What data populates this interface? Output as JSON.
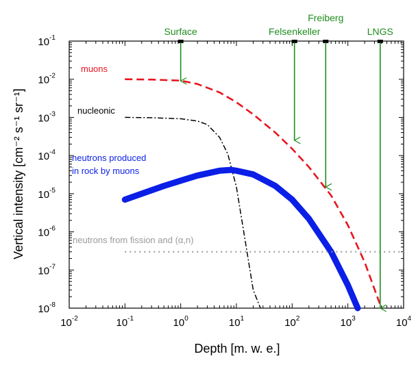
{
  "chart_data": {
    "type": "line",
    "title": "",
    "xlabel": "Depth [m. w. e.]",
    "ylabel": "Vertical intensity [cm⁻² s⁻¹ sr⁻¹]",
    "x_scale": "log",
    "y_scale": "log",
    "xlim": [
      0.01,
      10000
    ],
    "ylim": [
      1e-08,
      0.1
    ],
    "x_ticks": [
      {
        "base": "10",
        "exp": "-2"
      },
      {
        "base": "10",
        "exp": "-1"
      },
      {
        "base": "10",
        "exp": "0"
      },
      {
        "base": "10",
        "exp": "1"
      },
      {
        "base": "10",
        "exp": "2"
      },
      {
        "base": "10",
        "exp": "3"
      },
      {
        "base": "10",
        "exp": "4"
      }
    ],
    "y_ticks": [
      {
        "base": "10",
        "exp": "-8"
      },
      {
        "base": "10",
        "exp": "-7"
      },
      {
        "base": "10",
        "exp": "-6"
      },
      {
        "base": "10",
        "exp": "-5"
      },
      {
        "base": "10",
        "exp": "-4"
      },
      {
        "base": "10",
        "exp": "-3"
      },
      {
        "base": "10",
        "exp": "-2"
      },
      {
        "base": "10",
        "exp": "-1"
      }
    ],
    "grid": false,
    "legend": "none",
    "series": [
      {
        "name": "muons",
        "color": "#e8141e",
        "style": "dashed",
        "x": [
          0.1,
          0.3,
          1,
          2,
          5,
          10,
          20,
          50,
          100,
          200,
          500,
          1000,
          2000,
          4000
        ],
        "y": [
          0.01,
          0.0098,
          0.0092,
          0.0075,
          0.0045,
          0.0025,
          0.0012,
          0.0004,
          0.00015,
          5e-05,
          9e-06,
          1.5e-06,
          1.6e-07,
          1e-08
        ]
      },
      {
        "name": "nucleonic",
        "color": "#000000",
        "style": "dashdot",
        "x": [
          0.1,
          0.3,
          1,
          2,
          3,
          5,
          7,
          10,
          15,
          20,
          27
        ],
        "y": [
          0.001,
          0.00098,
          0.00092,
          0.0008,
          0.00065,
          0.0003,
          0.00011,
          1.5e-05,
          4e-07,
          3e-08,
          1e-08
        ]
      },
      {
        "name": "neutrons produced in rock by muons",
        "color": "#0b1fe6",
        "style": "solid-thick",
        "x": [
          0.1,
          0.2,
          0.5,
          1,
          2,
          5,
          8,
          10,
          20,
          50,
          100,
          200,
          500,
          1000,
          1500
        ],
        "y": [
          7e-06,
          1e-05,
          1.6e-05,
          2.2e-05,
          3e-05,
          4e-05,
          4.2e-05,
          4e-05,
          3.2e-05,
          1.6e-05,
          7e-06,
          2.2e-06,
          3e-07,
          4e-08,
          1e-08
        ]
      },
      {
        "name": "neutrons from fission and (α,n)",
        "color": "#9a9a9a",
        "style": "dotted",
        "x": [
          0.1,
          10000
        ],
        "y": [
          3e-07,
          3e-07
        ]
      }
    ],
    "annotations": [
      {
        "id": "muons",
        "text": "muons",
        "color": "#e8141e"
      },
      {
        "id": "nucleonic",
        "text": "nucleonic",
        "color": "#000000"
      },
      {
        "id": "neutrons1",
        "text": "neutrons produced",
        "color": "#0b1fe6"
      },
      {
        "id": "neutrons2",
        "text": "in rock by muons",
        "color": "#0b1fe6"
      },
      {
        "id": "fission",
        "text": "neutrons from fission and (α,n)",
        "color": "#9a9a9a"
      }
    ],
    "markers": [
      {
        "label": "Surface",
        "depth": 1,
        "arrow_to": 0.009
      },
      {
        "label": "Felsenkeller",
        "depth": 110,
        "arrow_to": 0.00025
      },
      {
        "label": "Freiberg",
        "depth": 400,
        "arrow_to": 1.5e-05
      },
      {
        "label": "LNGS",
        "depth": 3800,
        "arrow_to": 1e-08
      }
    ],
    "marker_color": "#1e8c1e"
  }
}
